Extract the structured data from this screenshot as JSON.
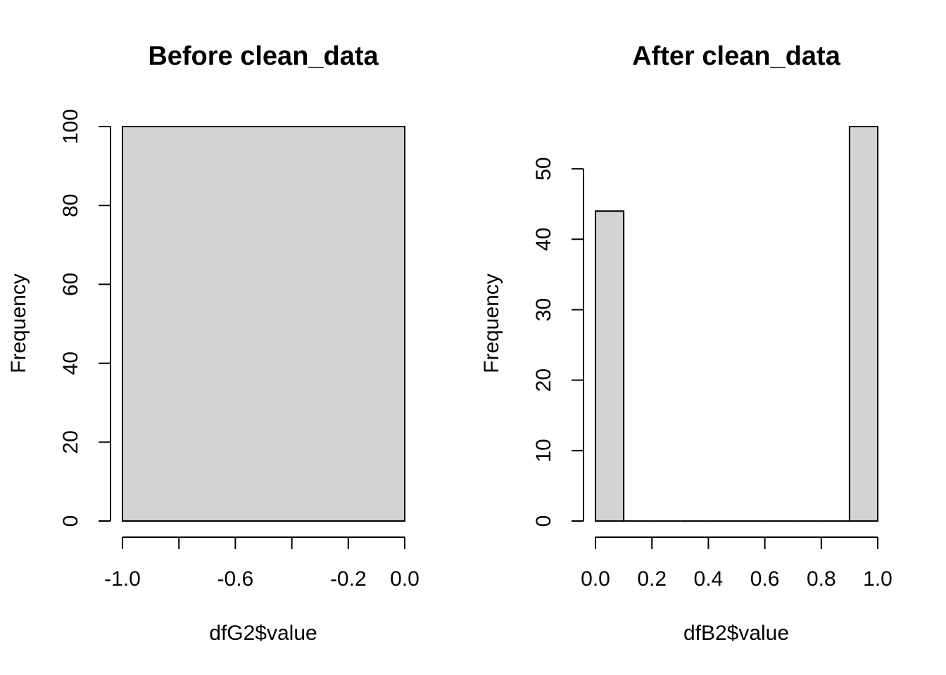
{
  "colors": {
    "bar_fill": "#d3d3d3",
    "bar_stroke": "#000000",
    "background": "#ffffff"
  },
  "chart_data": [
    {
      "type": "bar",
      "title": "Before clean_data",
      "xlabel": "dfG2$value",
      "ylabel": "Frequency",
      "xlim": [
        -1.0,
        0.0
      ],
      "ylim": [
        0,
        100
      ],
      "x_ticks": [
        -1.0,
        -0.8,
        -0.6,
        -0.4,
        -0.2,
        0.0
      ],
      "x_tick_labels": [
        "-1.0",
        "",
        "-0.6",
        "",
        "-0.2",
        "0.0"
      ],
      "y_ticks": [
        0,
        20,
        40,
        60,
        80,
        100
      ],
      "y_tick_labels": [
        "0",
        "20",
        "40",
        "60",
        "80",
        "100"
      ],
      "bins": [
        {
          "x0": -1.0,
          "x1": 0.0,
          "count": 100
        }
      ]
    },
    {
      "type": "bar",
      "title": "After clean_data",
      "xlabel": "dfB2$value",
      "ylabel": "Frequency",
      "xlim": [
        0.0,
        1.0
      ],
      "ylim": [
        0,
        56
      ],
      "x_ticks": [
        0.0,
        0.2,
        0.4,
        0.6,
        0.8,
        1.0
      ],
      "x_tick_labels": [
        "0.0",
        "0.2",
        "0.4",
        "0.6",
        "0.8",
        "1.0"
      ],
      "y_ticks": [
        0,
        10,
        20,
        30,
        40,
        50
      ],
      "y_tick_labels": [
        "0",
        "10",
        "20",
        "30",
        "40",
        "50"
      ],
      "bins": [
        {
          "x0": 0.0,
          "x1": 0.1,
          "count": 44
        },
        {
          "x0": 0.1,
          "x1": 0.2,
          "count": 0
        },
        {
          "x0": 0.2,
          "x1": 0.3,
          "count": 0
        },
        {
          "x0": 0.3,
          "x1": 0.4,
          "count": 0
        },
        {
          "x0": 0.4,
          "x1": 0.5,
          "count": 0
        },
        {
          "x0": 0.5,
          "x1": 0.6,
          "count": 0
        },
        {
          "x0": 0.6,
          "x1": 0.7,
          "count": 0
        },
        {
          "x0": 0.7,
          "x1": 0.8,
          "count": 0
        },
        {
          "x0": 0.8,
          "x1": 0.9,
          "count": 0
        },
        {
          "x0": 0.9,
          "x1": 1.0,
          "count": 56
        }
      ]
    }
  ]
}
